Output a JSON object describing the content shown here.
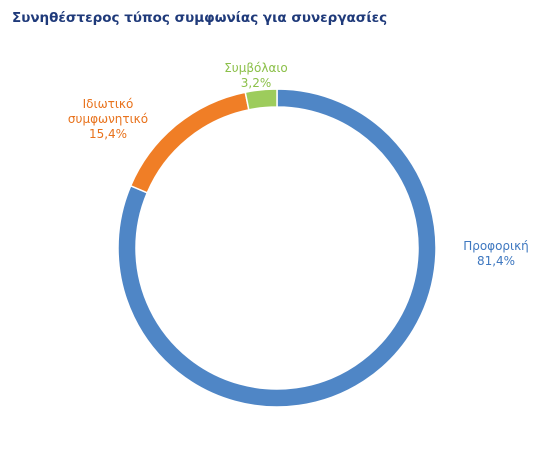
{
  "title": "Συνηθέστερος τύπος συμφωνίας για συνεργασίες",
  "chart_data": {
    "type": "pie",
    "variant": "doughnut",
    "title": "Συνηθέστερος τύπος συμφωνίας για συνεργασίες",
    "categories": [
      "Προφορική",
      "Ιδιωτικό συμφωνητικό",
      "Συμβόλαιο"
    ],
    "values": [
      81.4,
      15.4,
      3.2
    ],
    "value_labels": [
      "81,4%",
      "15,4%",
      "3,2%"
    ],
    "label_lines": [
      [
        "Προφορική",
        "81,4%"
      ],
      [
        "Ιδιωτικό",
        "συμφωνητικό",
        "15,4%"
      ],
      [
        "Συμβόλαιο",
        "3,2%"
      ]
    ],
    "colors": [
      "#4f86c6",
      "#f07e26",
      "#9dcc5c"
    ],
    "label_colors": [
      "#3f78c0",
      "#e8721c",
      "#8cc04a"
    ],
    "legend": "none",
    "data_labels": "outside"
  }
}
